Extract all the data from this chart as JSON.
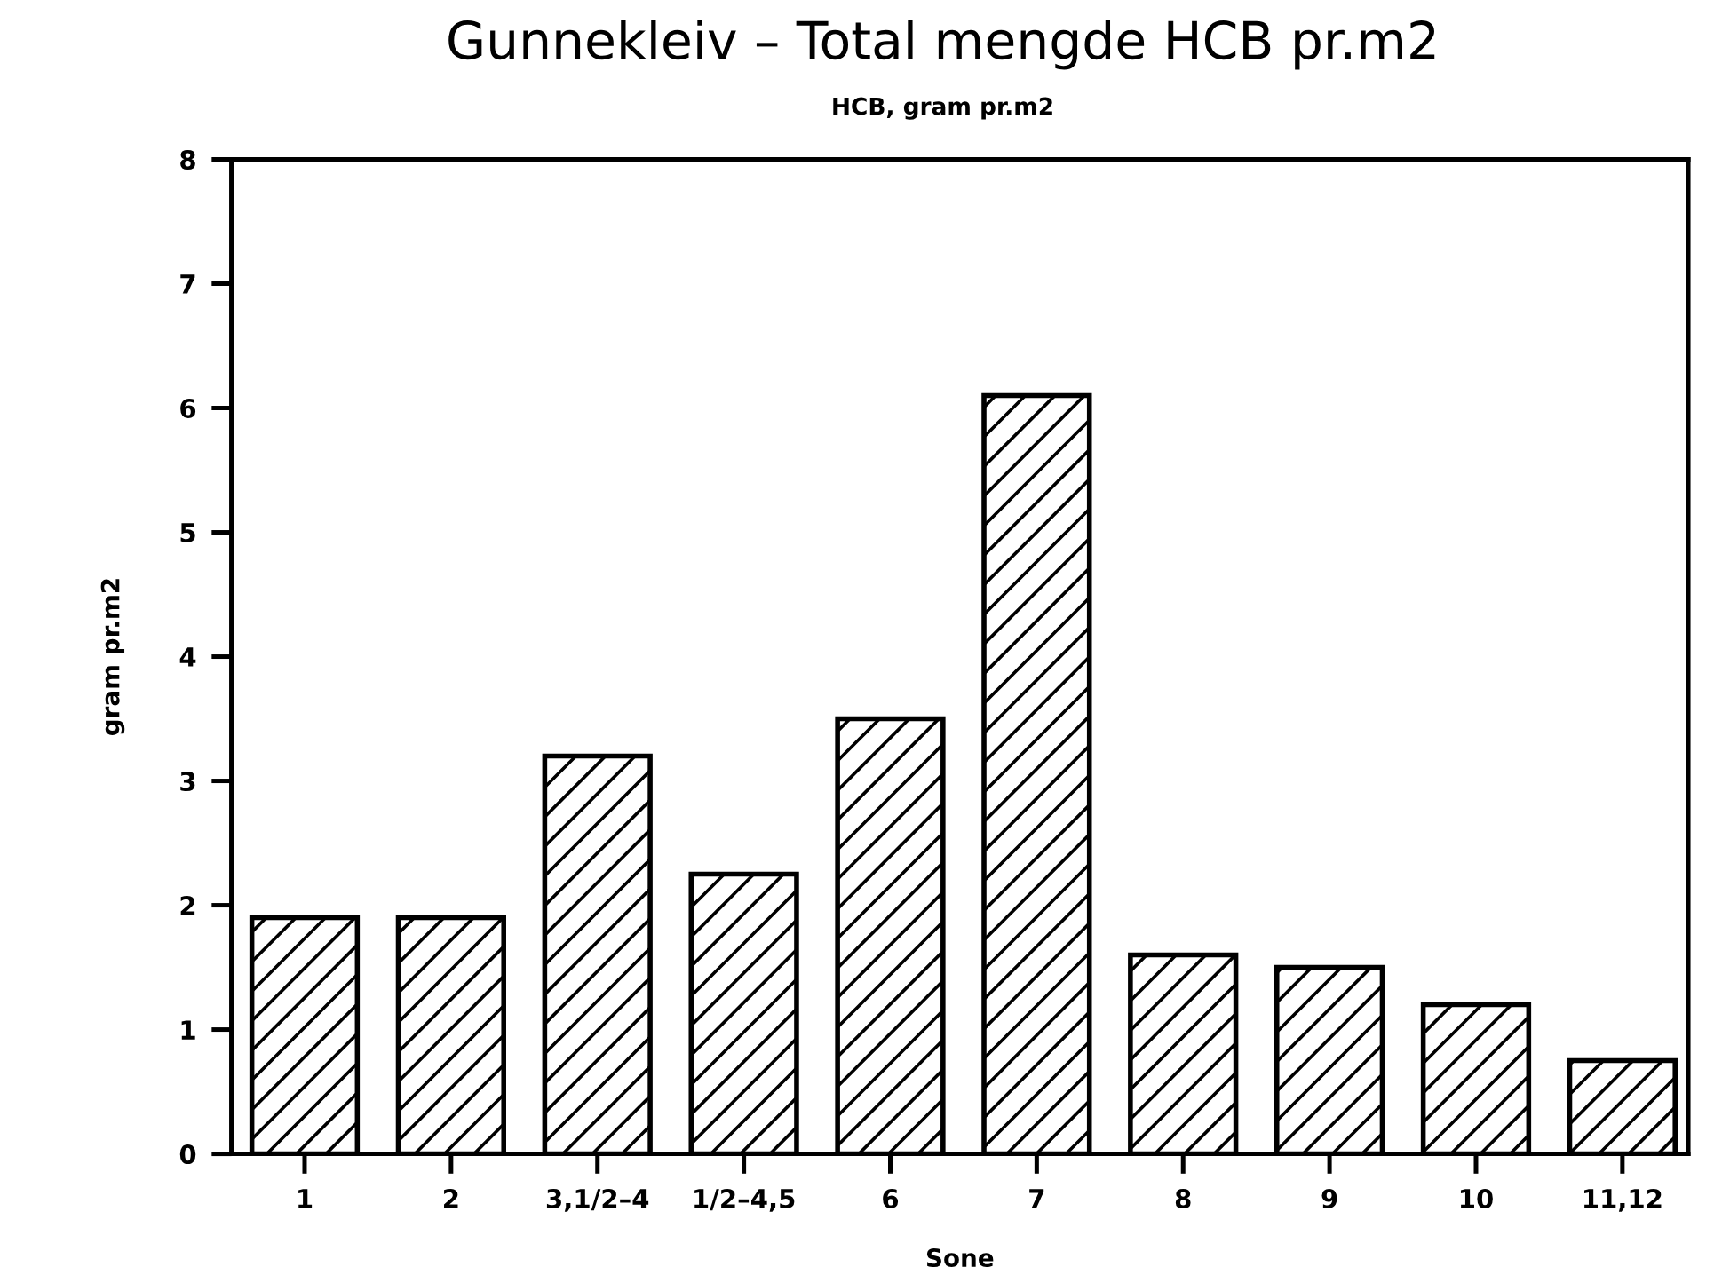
{
  "chart_data": {
    "type": "bar",
    "title": "Gunnekleiv – Total mengde HCB pr.m2",
    "subtitle": "HCB, gram pr.m2",
    "xlabel": "Sone",
    "ylabel": "gram pr.m2",
    "categories": [
      "1",
      "2",
      "3,1/2–4",
      "1/2–4,5",
      "6",
      "7",
      "8",
      "9",
      "10",
      "11,12"
    ],
    "values": [
      1.9,
      1.9,
      3.2,
      2.25,
      3.5,
      6.1,
      1.6,
      1.5,
      1.2,
      0.75
    ],
    "color": "#000000",
    "ylim": [
      0,
      8
    ],
    "yticks": [
      0,
      1,
      2,
      3,
      4,
      5,
      6,
      7,
      8
    ],
    "grid": false
  }
}
